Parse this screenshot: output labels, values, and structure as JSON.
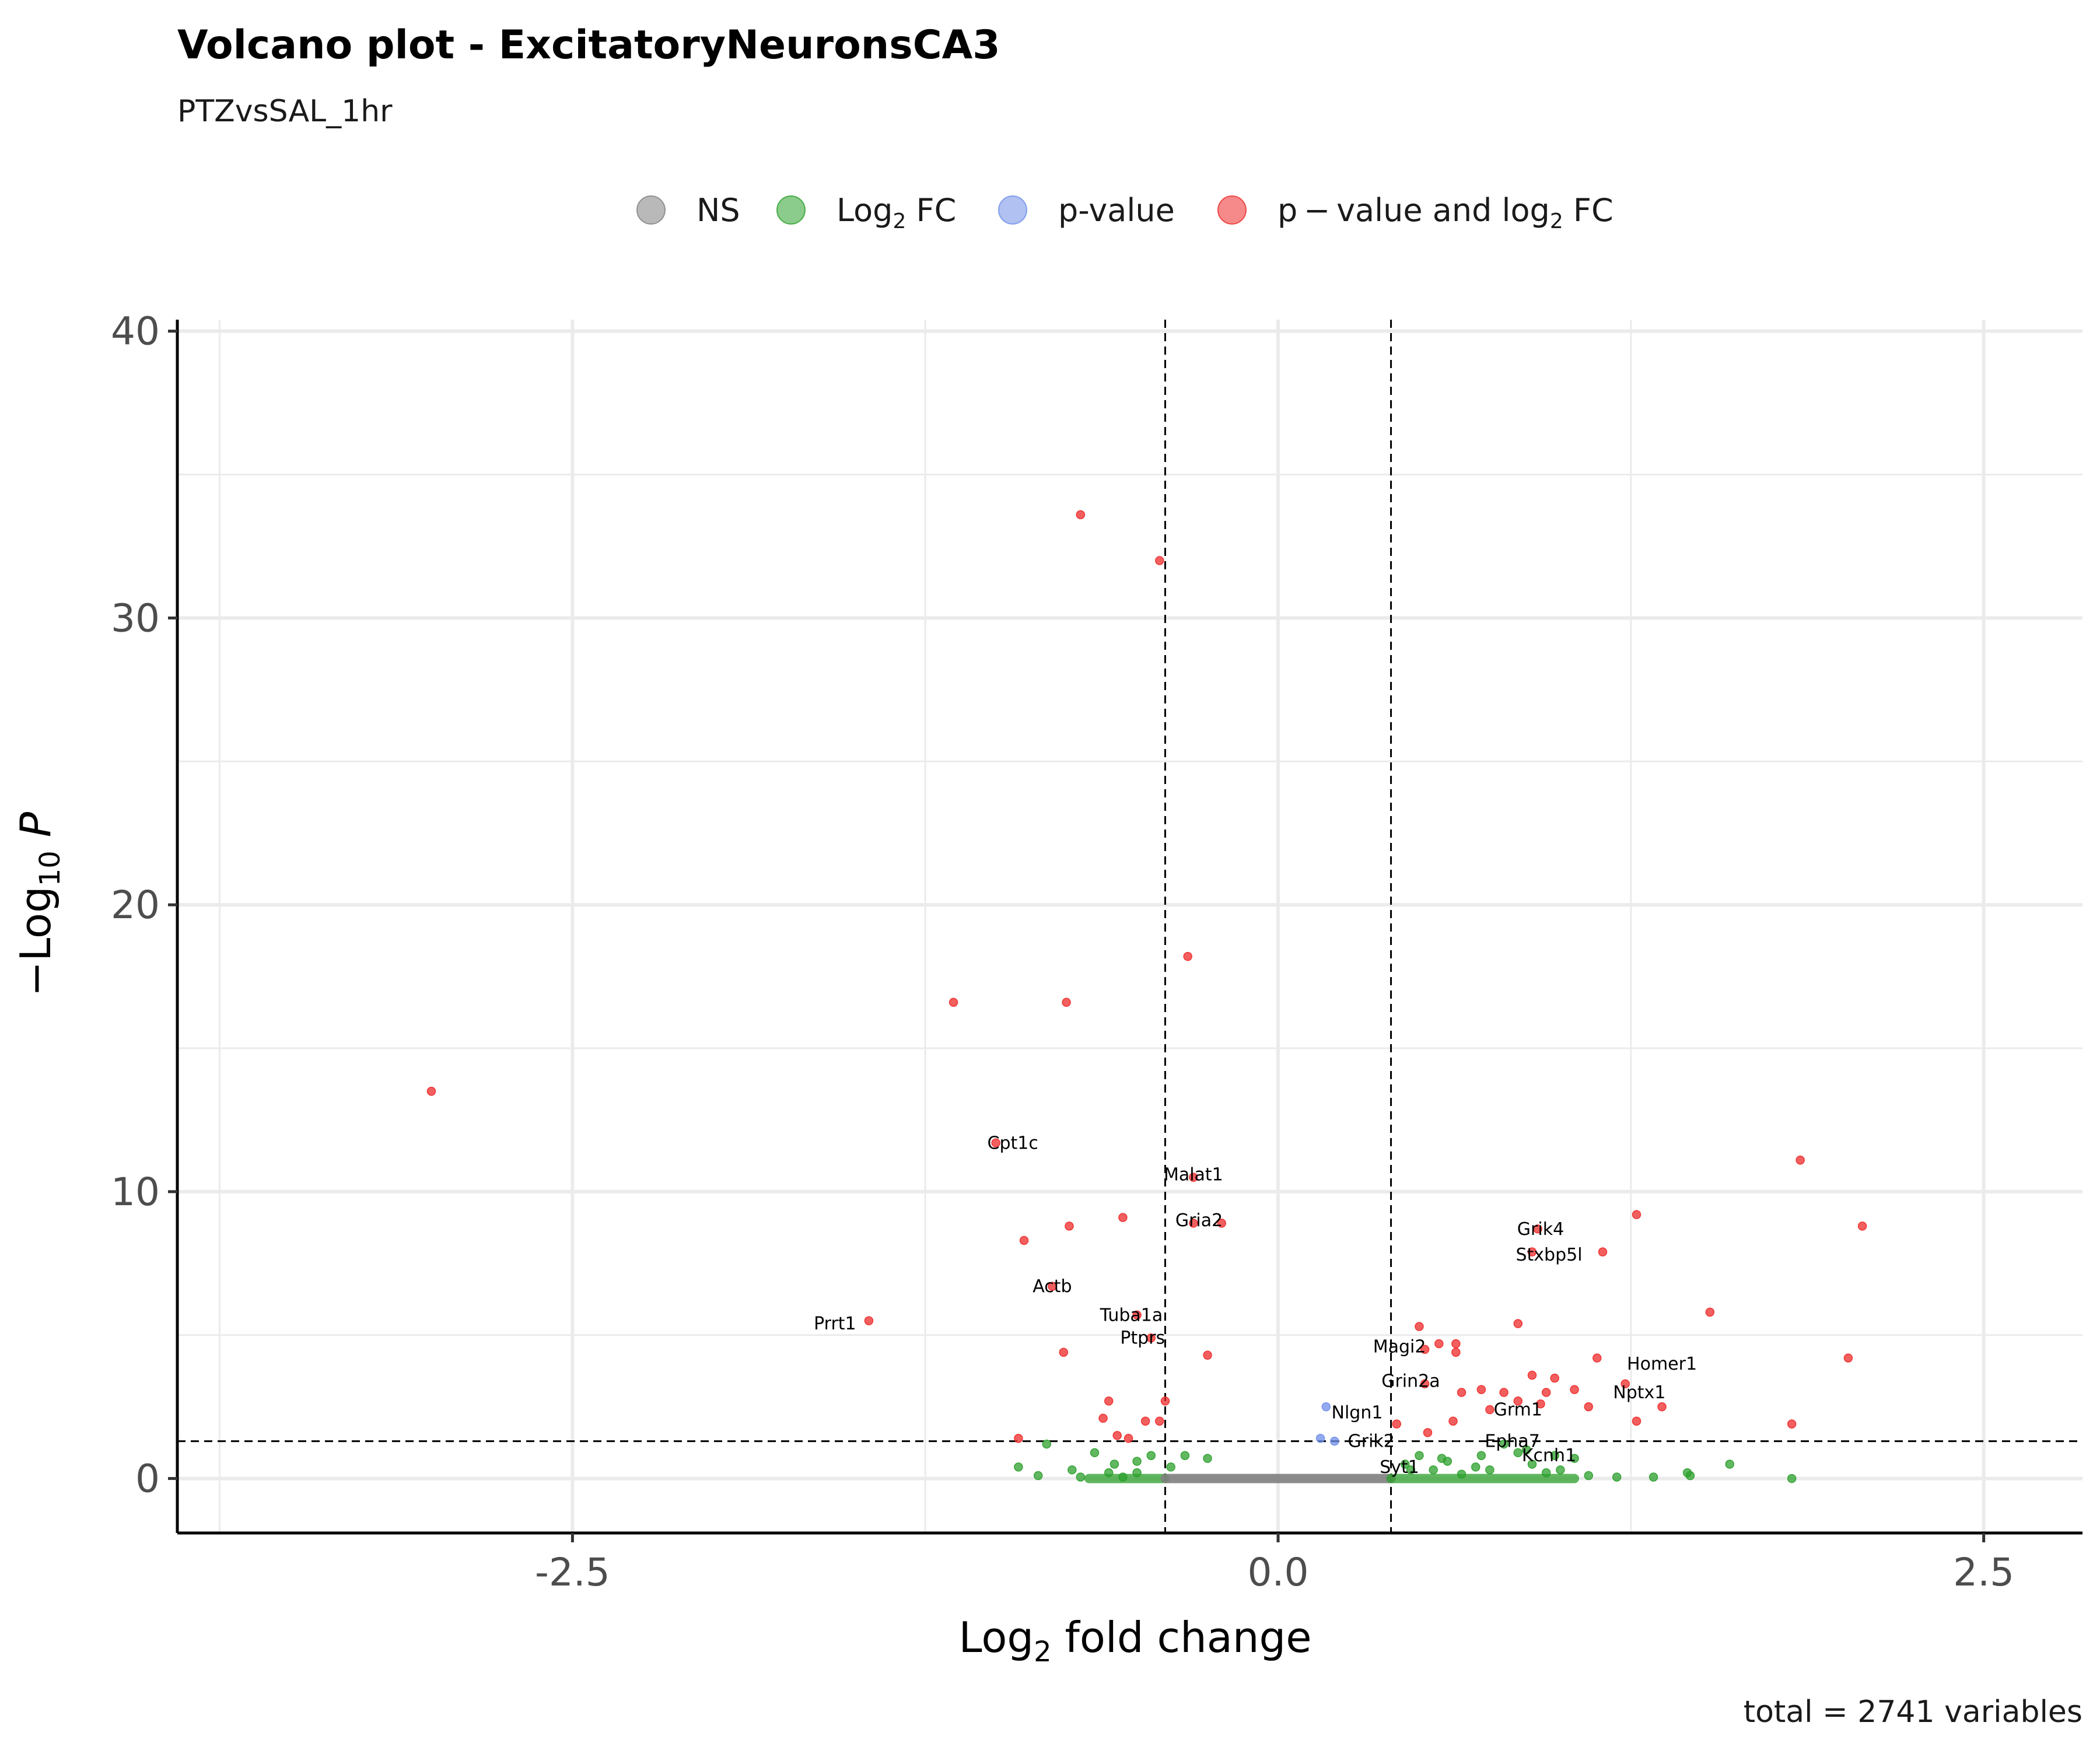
{
  "chart_data": {
    "type": "scatter",
    "title": "Volcano plot - ExcitatoryNeuronsCA3",
    "subtitle": "PTZvsSAL_1hr",
    "xlabel": "Log2 fold change",
    "ylabel": "−Log10 P",
    "caption": "total = 2741 variables",
    "xlim": [
      -3.9,
      2.85
    ],
    "ylim": [
      -1.9,
      40.4
    ],
    "xticks": [
      -2.5,
      0.0,
      2.5
    ],
    "xtick_labels": [
      "-2.5",
      "0.0",
      "2.5"
    ],
    "yticks": [
      0,
      10,
      20,
      30,
      40
    ],
    "ytick_labels": [
      "0",
      "10",
      "20",
      "30",
      "40"
    ],
    "cutoffs": {
      "log2fc": [
        -0.4,
        0.4
      ],
      "neg_log10_p": 1.3
    },
    "grid": true,
    "legend_position": "top",
    "colors": {
      "NS": "#808080",
      "Log2 FC": "#2ca02c",
      "p-value": "#6f8ee8",
      "p-value and log2 FC": "#ee2a2a"
    },
    "legend": [
      {
        "key": "NS",
        "label": "NS",
        "sub": "",
        "after": ""
      },
      {
        "key": "Log2 FC",
        "label": "Log",
        "sub": "2",
        "after": " FC"
      },
      {
        "key": "p-value",
        "label": "p-value",
        "sub": "",
        "after": ""
      },
      {
        "key": "p-value and log2 FC",
        "label": "p − value and log",
        "sub": "2",
        "after": " FC"
      }
    ],
    "series": [
      {
        "name": "p-value and log2 FC",
        "points": [
          [
            -0.7,
            33.6
          ],
          [
            -0.42,
            32.0
          ],
          [
            -0.32,
            18.2
          ],
          [
            -1.15,
            16.6
          ],
          [
            -0.75,
            16.6
          ],
          [
            -3.0,
            13.5
          ],
          [
            -1.0,
            11.7
          ],
          [
            -0.3,
            10.5
          ],
          [
            -0.55,
            9.1
          ],
          [
            -0.74,
            8.8
          ],
          [
            -0.9,
            8.3
          ],
          [
            -0.3,
            8.9
          ],
          [
            -0.2,
            8.9
          ],
          [
            -0.8,
            6.7
          ],
          [
            -1.45,
            5.5
          ],
          [
            -0.5,
            5.7
          ],
          [
            -0.45,
            4.9
          ],
          [
            -0.76,
            4.4
          ],
          [
            -0.25,
            4.3
          ],
          [
            -0.6,
            2.7
          ],
          [
            -0.4,
            2.7
          ],
          [
            -0.62,
            2.1
          ],
          [
            -0.47,
            2.0
          ],
          [
            -0.42,
            2.0
          ],
          [
            -0.57,
            1.5
          ],
          [
            -0.53,
            1.4
          ],
          [
            -0.92,
            1.4
          ],
          [
            1.85,
            11.1
          ],
          [
            1.27,
            9.2
          ],
          [
            2.07,
            8.8
          ],
          [
            0.92,
            8.7
          ],
          [
            1.15,
            7.9
          ],
          [
            0.9,
            7.9
          ],
          [
            1.53,
            5.8
          ],
          [
            0.85,
            5.4
          ],
          [
            0.5,
            5.3
          ],
          [
            0.57,
            4.7
          ],
          [
            0.63,
            4.7
          ],
          [
            0.63,
            4.4
          ],
          [
            0.52,
            4.5
          ],
          [
            2.02,
            4.2
          ],
          [
            1.13,
            4.2
          ],
          [
            0.9,
            3.6
          ],
          [
            0.98,
            3.5
          ],
          [
            0.72,
            3.1
          ],
          [
            0.52,
            3.3
          ],
          [
            1.23,
            3.3
          ],
          [
            0.65,
            3.0
          ],
          [
            0.8,
            3.0
          ],
          [
            0.95,
            3.0
          ],
          [
            0.93,
            2.6
          ],
          [
            1.05,
            3.1
          ],
          [
            1.36,
            2.5
          ],
          [
            0.75,
            2.4
          ],
          [
            0.62,
            2.0
          ],
          [
            1.27,
            2.0
          ],
          [
            1.82,
            1.9
          ],
          [
            0.42,
            1.9
          ],
          [
            0.53,
            1.6
          ],
          [
            1.1,
            2.5
          ],
          [
            0.85,
            2.7
          ]
        ]
      },
      {
        "name": "p-value",
        "points": [
          [
            0.17,
            2.5
          ],
          [
            0.15,
            1.4
          ],
          [
            0.2,
            1.3
          ]
        ]
      },
      {
        "name": "Log2 FC",
        "points": [
          [
            -0.82,
            1.2
          ],
          [
            -0.65,
            0.9
          ],
          [
            -0.45,
            0.8
          ],
          [
            -0.33,
            0.8
          ],
          [
            -0.25,
            0.7
          ],
          [
            -0.5,
            0.6
          ],
          [
            -0.92,
            0.4
          ],
          [
            -0.73,
            0.3
          ],
          [
            -0.58,
            0.5
          ],
          [
            -0.38,
            0.4
          ],
          [
            -0.6,
            0.2
          ],
          [
            -0.85,
            0.1
          ],
          [
            -0.7,
            0.05
          ],
          [
            -0.55,
            0.05
          ],
          [
            -0.5,
            0.2
          ],
          [
            0.8,
            1.2
          ],
          [
            0.98,
            0.8
          ],
          [
            1.05,
            0.7
          ],
          [
            1.6,
            0.5
          ],
          [
            1.45,
            0.2
          ],
          [
            1.82,
            0.0
          ],
          [
            0.85,
            0.9
          ],
          [
            0.5,
            0.8
          ],
          [
            0.6,
            0.6
          ],
          [
            0.7,
            0.4
          ],
          [
            0.75,
            0.3
          ],
          [
            1.0,
            0.3
          ],
          [
            1.1,
            0.1
          ],
          [
            1.2,
            0.05
          ],
          [
            1.33,
            0.05
          ],
          [
            0.95,
            0.2
          ],
          [
            0.65,
            0.15
          ],
          [
            0.45,
            0.5
          ],
          [
            0.55,
            0.3
          ],
          [
            1.46,
            0.1
          ],
          [
            0.9,
            0.5
          ],
          [
            0.88,
            1.0
          ],
          [
            0.58,
            0.7
          ],
          [
            0.47,
            0.3
          ],
          [
            0.72,
            0.8
          ]
        ]
      }
    ],
    "dense_bands": [
      {
        "series": "Log2 FC",
        "x_from": -0.67,
        "x_to": -0.4,
        "y": 0.0
      },
      {
        "series": "NS",
        "x_from": -0.4,
        "x_to": 0.4,
        "y": 0.0
      },
      {
        "series": "Log2 FC",
        "x_from": 0.4,
        "x_to": 1.05,
        "y": 0.0
      }
    ],
    "annotations": [
      {
        "text": "Cpt1c",
        "x": -0.94,
        "y": 11.7
      },
      {
        "text": "Malat1",
        "x": -0.3,
        "y": 10.6
      },
      {
        "text": "Gria2",
        "x": -0.28,
        "y": 9.0
      },
      {
        "text": "Actb",
        "x": -0.8,
        "y": 6.7
      },
      {
        "text": "Prrt1",
        "x": -1.57,
        "y": 5.4
      },
      {
        "text": "Tuba1a",
        "x": -0.52,
        "y": 5.7
      },
      {
        "text": "Ptprs",
        "x": -0.48,
        "y": 4.9
      },
      {
        "text": "Grik4",
        "x": 0.93,
        "y": 8.7
      },
      {
        "text": "Stxbp5l",
        "x": 0.96,
        "y": 7.8
      },
      {
        "text": "Magi2",
        "x": 0.43,
        "y": 4.6
      },
      {
        "text": "Homer1",
        "x": 1.36,
        "y": 4.0
      },
      {
        "text": "Grin2a",
        "x": 0.47,
        "y": 3.4
      },
      {
        "text": "Nptx1",
        "x": 1.28,
        "y": 3.0
      },
      {
        "text": "Grm1",
        "x": 0.85,
        "y": 2.4
      },
      {
        "text": "Nlgn1",
        "x": 0.28,
        "y": 2.3
      },
      {
        "text": "Grik2",
        "x": 0.33,
        "y": 1.3
      },
      {
        "text": "Epha7",
        "x": 0.83,
        "y": 1.3
      },
      {
        "text": "Kcnh1",
        "x": 0.96,
        "y": 0.8
      },
      {
        "text": "Syt1",
        "x": 0.43,
        "y": 0.4
      }
    ]
  }
}
